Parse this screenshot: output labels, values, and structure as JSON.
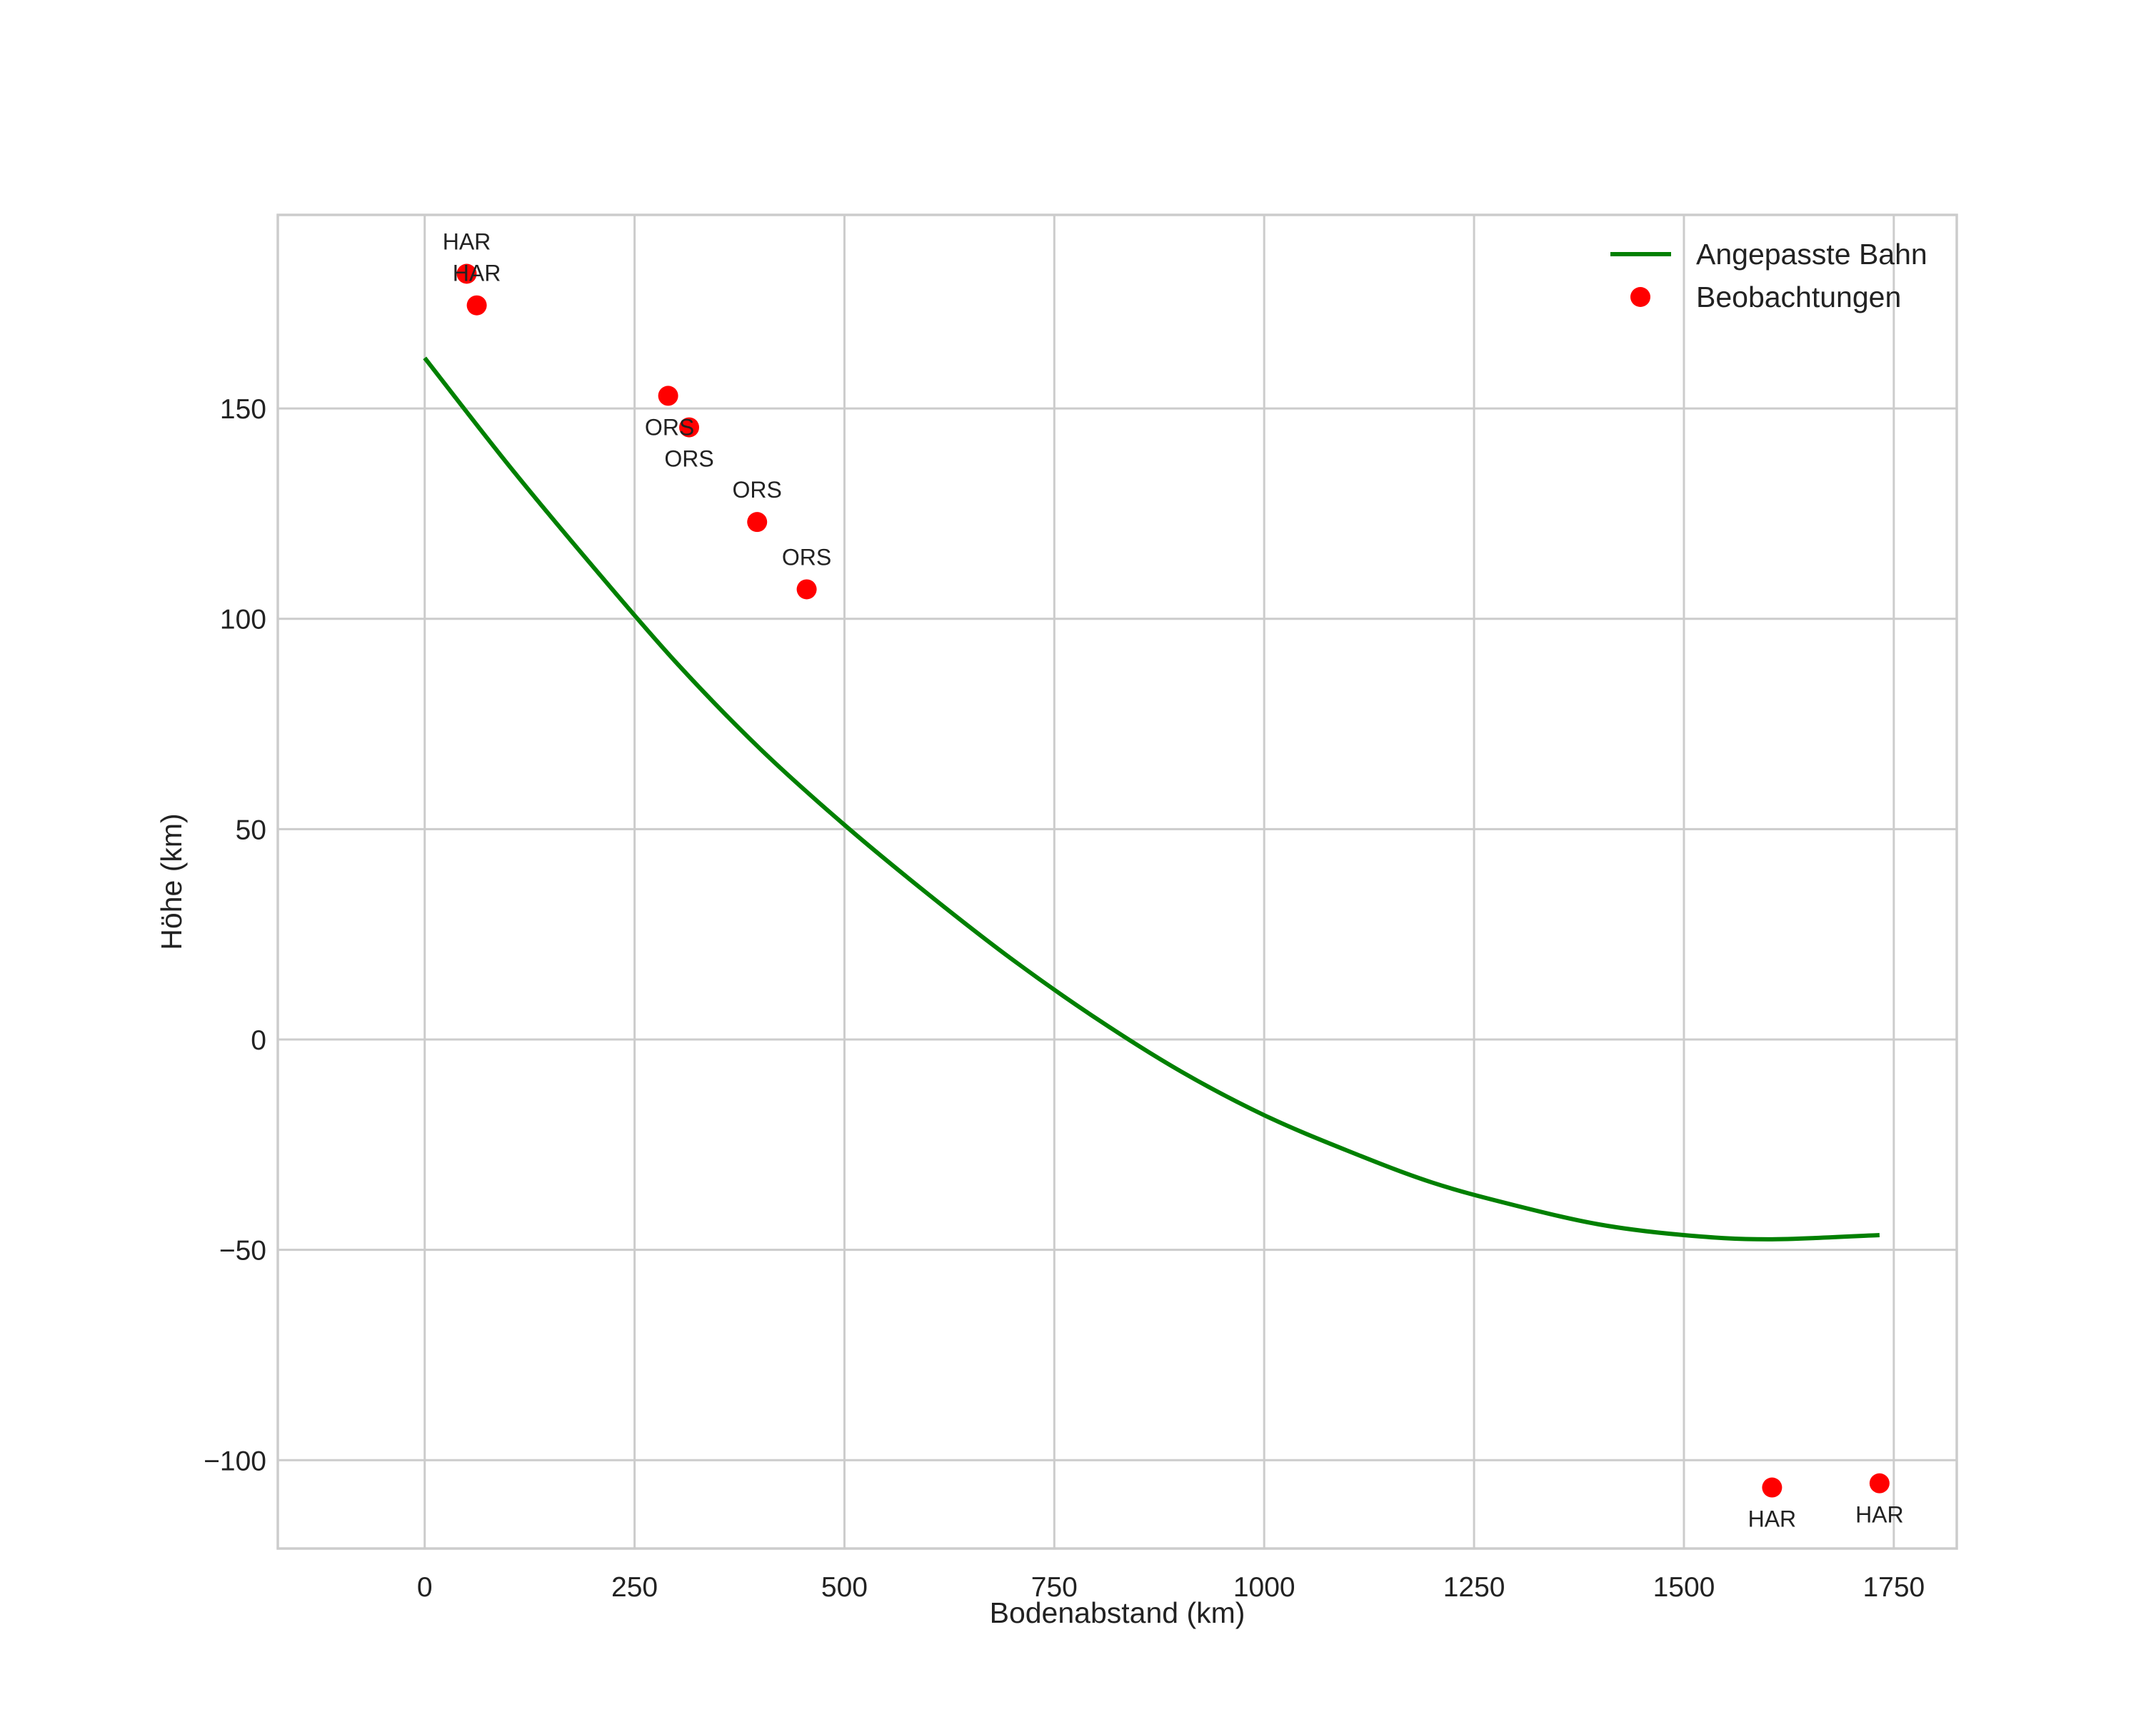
{
  "colors": {
    "fit_line": "#008000",
    "observation": "#ff0000",
    "grid": "#cccccc",
    "text": "#222222",
    "background": "#ffffff"
  },
  "chart_data": {
    "type": "scatter",
    "title": "",
    "xlabel": "Bodenabstand (km)",
    "ylabel": "Höhe (km)",
    "xlim": [
      -175,
      1825
    ],
    "ylim": [
      -121,
      196
    ],
    "grid": true,
    "legend_position": "top-right",
    "xticks": [
      0,
      250,
      500,
      750,
      1000,
      1250,
      1500,
      1750
    ],
    "xtick_labels": [
      "0",
      "250",
      "500",
      "750",
      "1000",
      "1250",
      "1500",
      "1750"
    ],
    "yticks": [
      150,
      100,
      50,
      0,
      -50,
      -100
    ],
    "ytick_labels": [
      "150",
      "100",
      "50",
      "0",
      "−50",
      "−100"
    ],
    "series": [
      {
        "name": "Angepasste Bahn",
        "kind": "line",
        "x": [
          0,
          100,
          200,
          300,
          400,
          500,
          600,
          700,
          800,
          900,
          1000,
          1100,
          1200,
          1300,
          1400,
          1500,
          1600,
          1733
        ],
        "y": [
          162,
          136.5,
          112.5,
          89.5,
          69,
          51,
          34.5,
          19,
          5,
          -7.5,
          -18,
          -26.5,
          -34,
          -39.5,
          -44,
          -46.5,
          -47.5,
          -46.5
        ]
      },
      {
        "name": "Beobachtungen",
        "kind": "scatter",
        "points": [
          {
            "x": 50,
            "y": 182,
            "label": "HAR"
          },
          {
            "x": 62,
            "y": 174.5,
            "label": "HAR"
          },
          {
            "x": 290,
            "y": 153,
            "label": "ORS"
          },
          {
            "x": 315,
            "y": 145.5,
            "label": "ORS"
          },
          {
            "x": 396,
            "y": 123,
            "label": "ORS"
          },
          {
            "x": 455,
            "y": 107,
            "label": "ORS"
          },
          {
            "x": 1605,
            "y": -106.5,
            "label": "HAR"
          },
          {
            "x": 1733,
            "y": -105.5,
            "label": "HAR"
          }
        ]
      }
    ]
  }
}
